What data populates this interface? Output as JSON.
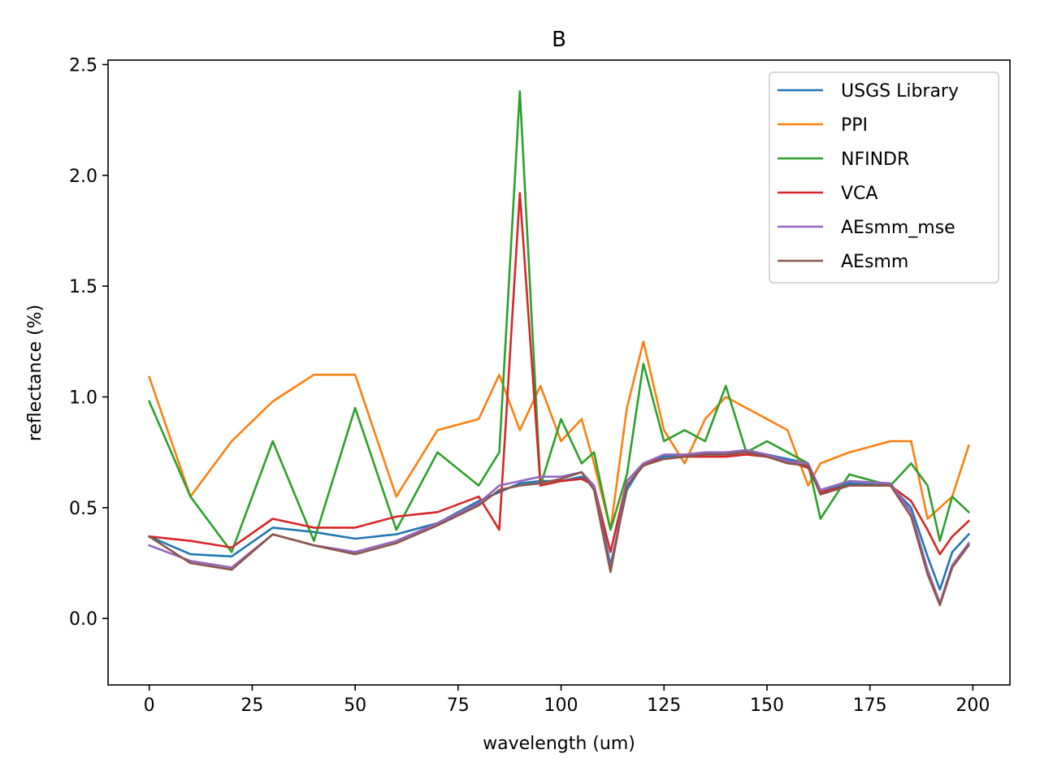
{
  "chart_data": {
    "type": "line",
    "title": "B",
    "xlabel": "wavelength (um)",
    "ylabel": "reflectance (%)",
    "xlim": [
      -10,
      209
    ],
    "ylim": [
      -0.3,
      2.52
    ],
    "xticks": [
      0,
      25,
      50,
      75,
      100,
      125,
      150,
      175,
      200
    ],
    "yticks": [
      0.0,
      0.5,
      1.0,
      1.5,
      2.0,
      2.5
    ],
    "xtick_labels": [
      "0",
      "25",
      "50",
      "75",
      "100",
      "125",
      "150",
      "175",
      "200"
    ],
    "ytick_labels": [
      "0.0",
      "0.5",
      "1.0",
      "1.5",
      "2.0",
      "2.5"
    ],
    "grid": false,
    "legend_position": "top-right",
    "x": [
      0,
      10,
      20,
      30,
      40,
      50,
      60,
      70,
      80,
      85,
      90,
      95,
      100,
      105,
      108,
      112,
      116,
      120,
      125,
      130,
      135,
      140,
      145,
      150,
      155,
      160,
      163,
      170,
      180,
      185,
      189,
      192,
      195,
      199
    ],
    "series": [
      {
        "name": "USGS Library",
        "color": "#1f77b4",
        "values": [
          0.37,
          0.29,
          0.28,
          0.41,
          0.39,
          0.36,
          0.38,
          0.43,
          0.53,
          0.57,
          0.61,
          0.62,
          0.62,
          0.64,
          0.6,
          0.24,
          0.58,
          0.7,
          0.73,
          0.74,
          0.74,
          0.75,
          0.75,
          0.74,
          0.72,
          0.7,
          0.57,
          0.61,
          0.6,
          0.5,
          0.28,
          0.13,
          0.3,
          0.38
        ]
      },
      {
        "name": "PPI",
        "color": "#ff7f0e",
        "values": [
          1.09,
          0.55,
          0.8,
          0.98,
          1.1,
          1.1,
          0.55,
          0.85,
          0.9,
          1.1,
          0.85,
          1.05,
          0.8,
          0.9,
          0.7,
          0.4,
          0.95,
          1.25,
          0.85,
          0.7,
          0.9,
          1.0,
          0.95,
          0.9,
          0.85,
          0.6,
          0.7,
          0.75,
          0.8,
          0.8,
          0.45,
          0.5,
          0.55,
          0.78
        ]
      },
      {
        "name": "NFINDR",
        "color": "#2ca02c",
        "values": [
          0.98,
          0.55,
          0.3,
          0.8,
          0.35,
          0.95,
          0.4,
          0.75,
          0.6,
          0.75,
          2.38,
          0.6,
          0.9,
          0.7,
          0.75,
          0.4,
          0.65,
          1.15,
          0.8,
          0.85,
          0.8,
          1.05,
          0.75,
          0.8,
          0.75,
          0.7,
          0.45,
          0.65,
          0.6,
          0.7,
          0.6,
          0.35,
          0.55,
          0.48
        ]
      },
      {
        "name": "VCA",
        "color": "#d62728",
        "values": [
          0.37,
          0.35,
          0.32,
          0.45,
          0.41,
          0.41,
          0.46,
          0.48,
          0.55,
          0.4,
          1.92,
          0.6,
          0.62,
          0.63,
          0.6,
          0.3,
          0.62,
          0.7,
          0.72,
          0.73,
          0.73,
          0.73,
          0.74,
          0.73,
          0.71,
          0.68,
          0.57,
          0.6,
          0.6,
          0.53,
          0.4,
          0.29,
          0.37,
          0.44
        ]
      },
      {
        "name": "AEsmm_mse",
        "color": "#9467bd",
        "values": [
          0.33,
          0.26,
          0.23,
          0.38,
          0.33,
          0.3,
          0.35,
          0.43,
          0.52,
          0.6,
          0.62,
          0.64,
          0.64,
          0.66,
          0.6,
          0.22,
          0.62,
          0.7,
          0.74,
          0.74,
          0.75,
          0.75,
          0.76,
          0.74,
          0.71,
          0.7,
          0.58,
          0.62,
          0.61,
          0.48,
          0.22,
          0.07,
          0.24,
          0.34
        ]
      },
      {
        "name": "AEsmm",
        "color": "#8c564b",
        "values": [
          0.37,
          0.25,
          0.22,
          0.38,
          0.33,
          0.29,
          0.34,
          0.42,
          0.51,
          0.58,
          0.6,
          0.61,
          0.63,
          0.66,
          0.58,
          0.21,
          0.6,
          0.69,
          0.72,
          0.73,
          0.74,
          0.74,
          0.75,
          0.73,
          0.7,
          0.69,
          0.56,
          0.6,
          0.6,
          0.46,
          0.2,
          0.06,
          0.23,
          0.33
        ]
      }
    ]
  }
}
